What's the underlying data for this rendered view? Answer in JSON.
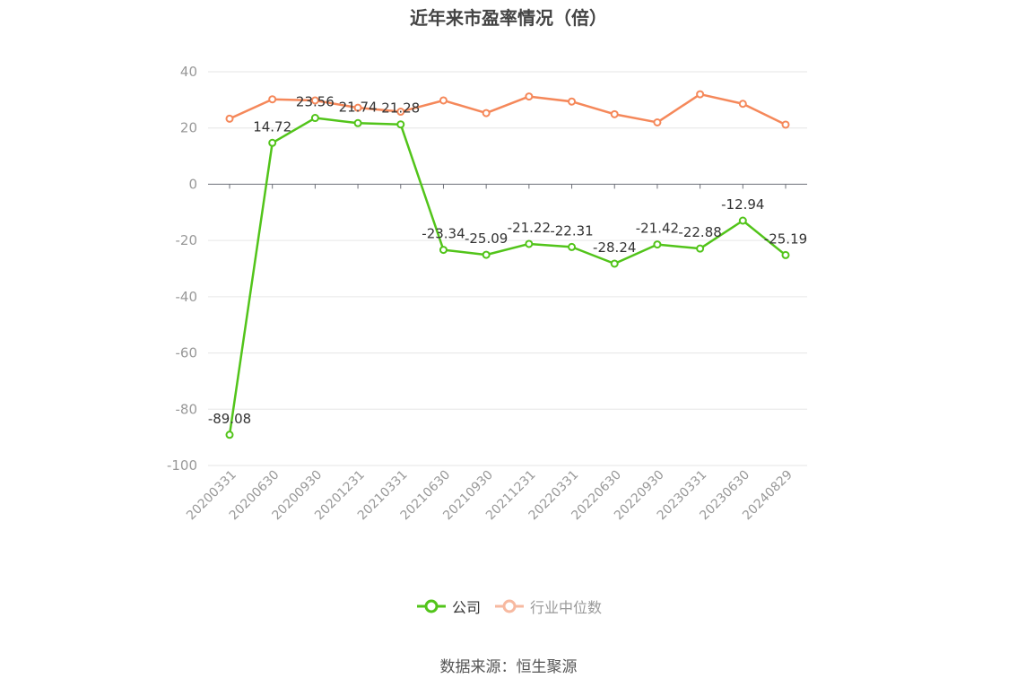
{
  "title": "近年来市盈率情况（倍）",
  "source_note": "数据来源：恒生聚源",
  "colors": {
    "company": "#52c41a",
    "industry": "#f5885a",
    "industry_legend": "#f7b9a0",
    "axis_text": "#999999",
    "grid": "#e6e6e6",
    "label": "#333333"
  },
  "chart_data": {
    "type": "line",
    "categories": [
      "20200331",
      "20200630",
      "20200930",
      "20201231",
      "20210331",
      "20210630",
      "20210930",
      "20211231",
      "20220331",
      "20220630",
      "20220930",
      "20230331",
      "20230630",
      "20240829"
    ],
    "ylim": [
      -100,
      40
    ],
    "yticks": [
      40,
      20,
      0,
      -20,
      -40,
      -60,
      -80,
      -100
    ],
    "grid": true,
    "legend_position": "bottom",
    "series": [
      {
        "name": "公司",
        "values": [
          -89.08,
          14.72,
          23.56,
          21.74,
          21.28,
          -23.34,
          -25.09,
          -21.22,
          -22.31,
          -28.24,
          -21.42,
          -22.88,
          -12.94,
          -25.19
        ],
        "labels_shown": true
      },
      {
        "name": "行业中位数",
        "values": [
          23.3,
          30.2,
          29.8,
          27.2,
          25.8,
          29.8,
          25.3,
          31.2,
          29.4,
          24.9,
          22.0,
          32.0,
          28.6,
          21.2
        ],
        "labels_shown": false
      }
    ]
  }
}
